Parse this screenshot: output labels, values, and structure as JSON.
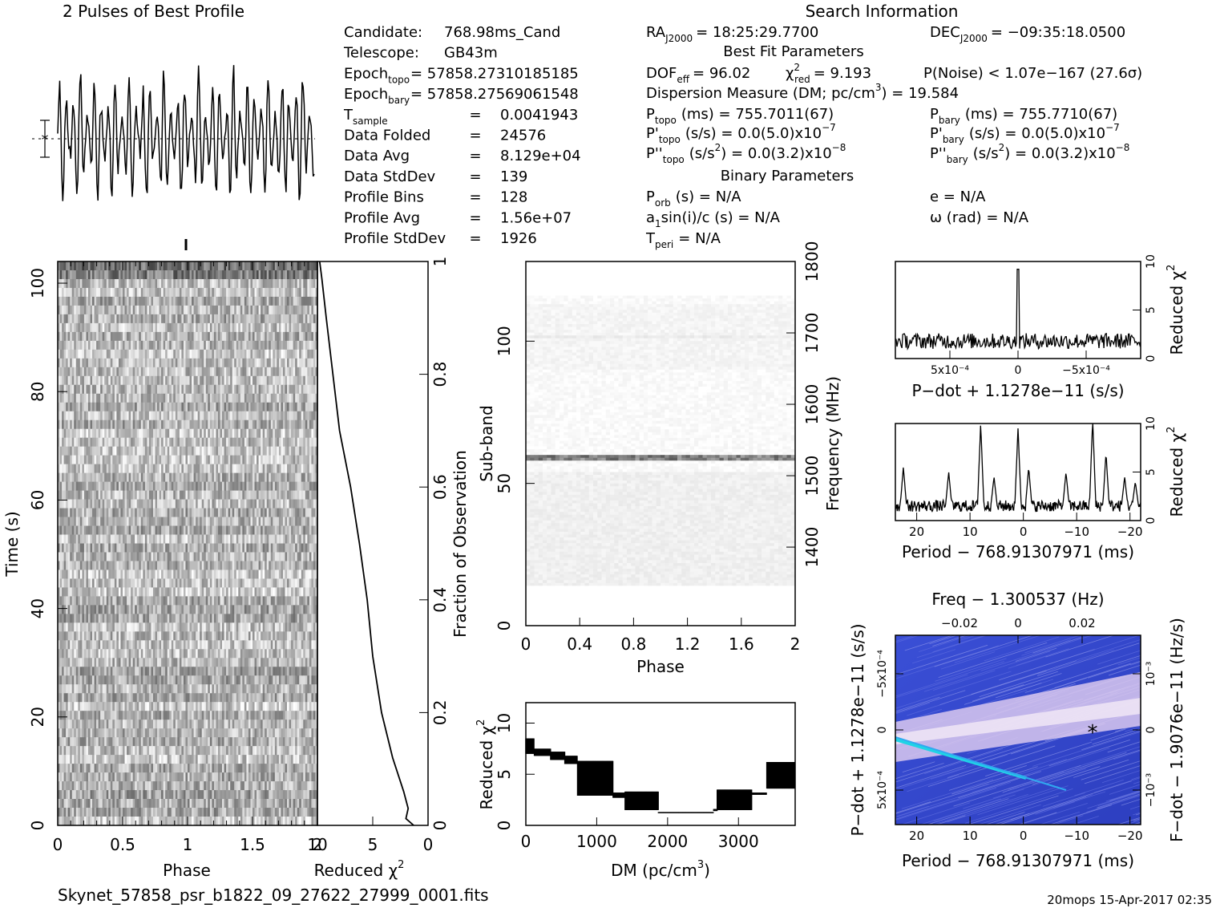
{
  "title_left": "2 Pulses of Best Profile",
  "title_right": "Search Information",
  "candidate": {
    "rows": [
      {
        "label": "Candidate:",
        "value": "768.98ms_Cand"
      },
      {
        "label": "Telescope:",
        "value": "GB43m"
      },
      {
        "label": "Epoch",
        "sub": "topo",
        "value": "= 57858.27310185185"
      },
      {
        "label": "Epoch",
        "sub": "bary",
        "value": "= 57858.27569061548"
      },
      {
        "label": "T",
        "sub": "sample",
        "eq": "=",
        "value": "0.0041943"
      },
      {
        "label": "Data Folded",
        "eq": "=",
        "value": "24576"
      },
      {
        "label": "Data Avg",
        "eq": "=",
        "value": "8.129e+04"
      },
      {
        "label": "Data StdDev",
        "eq": "=",
        "value": "139"
      },
      {
        "label": "Profile Bins",
        "eq": "=",
        "value": "128"
      },
      {
        "label": "Profile Avg",
        "eq": "=",
        "value": "1.56e+07"
      },
      {
        "label": "Profile StdDev",
        "eq": "=",
        "value": "1926"
      }
    ]
  },
  "search": {
    "ra": {
      "label": "RA",
      "sub": "J2000",
      "value": "= 18:25:29.7700"
    },
    "dec": {
      "label": "DEC",
      "sub": "J2000",
      "value": "= −09:35:18.0500"
    },
    "best_fit_header": "Best Fit Parameters",
    "dof": {
      "label": "DOF",
      "sub": "eff",
      "value": "= 96.02"
    },
    "chi": {
      "label": "χ",
      "sup": "2",
      "sub": "red",
      "value": "= 9.193"
    },
    "pnoise": "P(Noise) < 1.07e−167   (27.6σ)",
    "dm": {
      "text": "Dispersion Measure (DM; pc/cm",
      "sup": "3",
      "value": ") = 19.584"
    },
    "ptopo": {
      "label": "P",
      "sub": "topo",
      "value": "(ms) =  755.7011(67)"
    },
    "pbary": {
      "label": "P",
      "sub": "bary",
      "value": "(ms) =  755.7710(67)"
    },
    "pdtopo": {
      "label": "P'",
      "sub": "topo",
      "value": "(s/s) = 0.0(5.0)x10",
      "sup": "−7"
    },
    "pdbary": {
      "label": "P'",
      "sub": "bary",
      "value": "(s/s) = 0.0(5.0)x10",
      "sup": "−7"
    },
    "pddtopo": {
      "label": "P''",
      "sub": "topo",
      "value": "(s/s",
      "sup2": "2",
      "value2": ") = 0.0(3.2)x10",
      "sup": "−8"
    },
    "pddbary": {
      "label": "P''",
      "sub": "bary",
      "value": "(s/s",
      "sup2": "2",
      "value2": ") = 0.0(3.2)x10",
      "sup": "−8"
    },
    "binary_header": "Binary Parameters",
    "porb": {
      "label": "P",
      "sub": "orb",
      "value": "(s) = N/A"
    },
    "ecc": "e = N/A",
    "a1": {
      "label": "a",
      "sub": "1",
      "value": "sin(i)/c (s) = N/A"
    },
    "omega": "ω (rad) = N/A",
    "tperi": {
      "label": "T",
      "sub": "peri",
      "value": "= N/A"
    }
  },
  "footer_left": "Skynet_57858_psr_b1822_09_27622_27999_0001.fits",
  "footer_right": "20mops 15-Apr-2017 02:35",
  "chart_data": [
    {
      "id": "profile",
      "type": "line",
      "title": "2 Pulses of Best Profile",
      "x_range": [
        0,
        2
      ],
      "samples": 256,
      "note_peaks": "about 37 oscillations across two pulses"
    },
    {
      "id": "time_phase",
      "type": "heatmap",
      "xlabel": "Phase",
      "ylabel": "Time (s)",
      "xlim": [
        0,
        2
      ],
      "ylim": [
        0,
        104
      ],
      "x_ticks": [
        "0",
        "0.5",
        "1",
        "1.5",
        "2"
      ],
      "y_ticks": [
        "0",
        "20",
        "40",
        "60",
        "80",
        "100"
      ]
    },
    {
      "id": "time_chi",
      "type": "line",
      "xlabel": "Reduced χ",
      "xlabel_sup": "2",
      "ylabel_right": "Fraction of Observation",
      "xlim": [
        10,
        0
      ],
      "ylim": [
        0,
        1
      ],
      "x_ticks": [
        "10",
        "5",
        "0"
      ],
      "y_ticks": [
        "0",
        "0.2",
        "0.4",
        "0.6",
        "0.8",
        "1"
      ],
      "points": [
        [
          1.3,
          0
        ],
        [
          2,
          0.012
        ],
        [
          1.8,
          0.03
        ],
        [
          2.2,
          0.06
        ],
        [
          3.2,
          0.12
        ],
        [
          4.2,
          0.2
        ],
        [
          5,
          0.3
        ],
        [
          5.5,
          0.4
        ],
        [
          6.2,
          0.5
        ],
        [
          7,
          0.6
        ],
        [
          8,
          0.7
        ],
        [
          8.6,
          0.8
        ],
        [
          9.2,
          0.9
        ],
        [
          9.6,
          0.97
        ],
        [
          9.8,
          1
        ]
      ]
    },
    {
      "id": "freq_phase",
      "type": "heatmap",
      "xlabel": "Phase",
      "ylabel": "Sub-band",
      "ylabel_right": "Frequency (MHz)",
      "xlim": [
        0,
        2
      ],
      "ylim": [
        0,
        128
      ],
      "y2lim": [
        1300,
        1800
      ],
      "x_ticks": [
        "0",
        "0.4",
        "0.8",
        "1.2",
        "1.6",
        "2"
      ],
      "y_ticks": [
        "0",
        "50",
        "100"
      ],
      "y2_ticks": [
        "1400",
        "1500",
        "1600",
        "1700",
        "1800"
      ],
      "bright_band": 58
    },
    {
      "id": "dm_chi",
      "type": "line",
      "xlabel": "DM (pc/cm",
      "xlabel_sup": "3",
      "xlabel_end": ")",
      "ylabel": "Reduced χ",
      "ylabel_sup": "2",
      "xlim": [
        0,
        3800
      ],
      "ylim": [
        0,
        12
      ],
      "x_ticks": [
        "0",
        "1000",
        "2000",
        "3000"
      ],
      "y_ticks": [
        "0",
        "5",
        "10"
      ],
      "steps": [
        [
          0,
          8.5,
          7.0
        ],
        [
          120,
          7.5,
          6.8
        ],
        [
          350,
          7.2,
          6.4
        ],
        [
          550,
          6.8,
          6.0
        ],
        [
          730,
          6.3,
          2.9
        ],
        [
          1230,
          3.2,
          2.7
        ],
        [
          1400,
          3.3,
          1.5
        ],
        [
          1870,
          1.3,
          1.2
        ],
        [
          2650,
          1.6,
          1.4
        ],
        [
          2700,
          3.5,
          1.5
        ],
        [
          3190,
          3.2,
          3.0
        ],
        [
          3400,
          6.2,
          3.6
        ],
        [
          3800,
          6.5,
          4.5
        ]
      ]
    },
    {
      "id": "pdot_chi",
      "type": "line",
      "xlabel": "P−dot + 1.1278e−11 (s/s)",
      "ylabel_right": "Reduced χ",
      "ylabel_right_sup": "2",
      "xlim": [
        0.00091,
        -0.00091
      ],
      "ylim": [
        0,
        10
      ],
      "x_ticks": [
        "5x10⁻⁴",
        "0",
        "−5x10⁻⁴"
      ],
      "y_ticks": [
        "0",
        "5",
        "10"
      ],
      "peak_x": 0,
      "peak_y": 9.2,
      "baseline": 1.8
    },
    {
      "id": "period_chi",
      "type": "line",
      "xlabel": "Period − 768.91307971 (ms)",
      "ylabel_right": "Reduced χ",
      "ylabel_right_sup": "2",
      "xlim": [
        24,
        -22
      ],
      "ylim": [
        0,
        10
      ],
      "x_ticks": [
        "20",
        "10",
        "0",
        "−10",
        "−20"
      ],
      "y_ticks": [
        "0",
        "5",
        "10"
      ],
      "peaks": [
        [
          22.5,
          4.0
        ],
        [
          14,
          3.5
        ],
        [
          8,
          8.5
        ],
        [
          5.5,
          3.0
        ],
        [
          1,
          8.0
        ],
        [
          -1,
          4.0
        ],
        [
          -8,
          3.5
        ],
        [
          -13,
          9.0
        ],
        [
          -15.5,
          5.5
        ],
        [
          -19,
          3.0
        ],
        [
          -21,
          2.5
        ]
      ],
      "baseline": 1.5
    },
    {
      "id": "ppdot",
      "type": "heatmap",
      "title": "Freq − 1.300537 (Hz)",
      "xlabel": "Period − 768.91307971 (ms)",
      "ylabel": "P−dot + 1.1278e−11 (s/s)",
      "ylabel_right": "F−dot − 1.9076e−11 (Hz/s)",
      "x_ticks": [
        "20",
        "10",
        "0",
        "−10",
        "−20"
      ],
      "top_ticks": [
        "−0.02",
        "0",
        "0.02"
      ],
      "left_ticks": [
        "−5x10⁻⁴",
        "0",
        "5x10⁻⁴"
      ],
      "right_ticks": [
        "10⁻³",
        "0",
        "−10⁻³"
      ],
      "best_marker": "*"
    }
  ]
}
